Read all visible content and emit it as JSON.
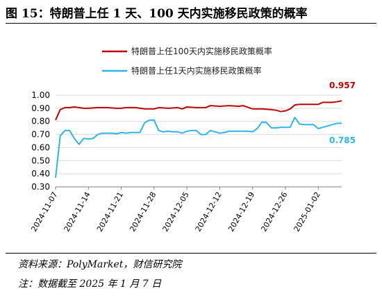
{
  "figure_title": "图 15：特朗普上任 1 天、100 天内实施移民政策的概率",
  "source_text": "资料来源：PolyMarket，财信研究院",
  "note_text": "注：数据截至 2025 年 1 月 7 日",
  "colors": {
    "series_100d": "#C00000",
    "series_1d": "#2EB5E8",
    "grid": "#d9d9d9",
    "axis": "#7f7f7f"
  },
  "chart_data": {
    "type": "line",
    "title": "",
    "xlabel": "",
    "ylabel": "",
    "ylim": [
      0.3,
      1.0
    ],
    "yticks": [
      "1.00",
      "0.90",
      "0.80",
      "0.70",
      "0.60",
      "0.50",
      "0.40",
      "0.30"
    ],
    "xlim": [
      "2024-11-07",
      "2025-01-07"
    ],
    "xticks": [
      "2024-11-07",
      "2024-11-14",
      "2024-11-21",
      "2024-11-28",
      "2024-12-05",
      "2024-12-12",
      "2024-12-19",
      "2024-12-26",
      "2025-01-02"
    ],
    "grid": "horizontal",
    "legend_position": "top",
    "series": [
      {
        "name": "特朗普上任100天内实施移民政策概率",
        "color": "#C00000",
        "end_label": "0.957",
        "points": [
          [
            "2024-11-07",
            0.81
          ],
          [
            "2024-11-08",
            0.89
          ],
          [
            "2024-11-09",
            0.905
          ],
          [
            "2024-11-10",
            0.905
          ],
          [
            "2024-11-11",
            0.91
          ],
          [
            "2024-11-12",
            0.905
          ],
          [
            "2024-11-13",
            0.9
          ],
          [
            "2024-11-14",
            0.9
          ],
          [
            "2024-11-16",
            0.905
          ],
          [
            "2024-11-18",
            0.905
          ],
          [
            "2024-11-20",
            0.9
          ],
          [
            "2024-11-21",
            0.9
          ],
          [
            "2024-11-22",
            0.905
          ],
          [
            "2024-11-24",
            0.905
          ],
          [
            "2024-11-26",
            0.895
          ],
          [
            "2024-11-28",
            0.895
          ],
          [
            "2024-11-29",
            0.905
          ],
          [
            "2024-12-01",
            0.9
          ],
          [
            "2024-12-03",
            0.905
          ],
          [
            "2024-12-04",
            0.895
          ],
          [
            "2024-12-05",
            0.91
          ],
          [
            "2024-12-07",
            0.905
          ],
          [
            "2024-12-09",
            0.905
          ],
          [
            "2024-12-10",
            0.92
          ],
          [
            "2024-12-12",
            0.915
          ],
          [
            "2024-12-14",
            0.92
          ],
          [
            "2024-12-16",
            0.915
          ],
          [
            "2024-12-17",
            0.92
          ],
          [
            "2024-12-19",
            0.895
          ],
          [
            "2024-12-21",
            0.895
          ],
          [
            "2024-12-23",
            0.89
          ],
          [
            "2024-12-24",
            0.885
          ],
          [
            "2024-12-25",
            0.875
          ],
          [
            "2024-12-26",
            0.88
          ],
          [
            "2024-12-27",
            0.895
          ],
          [
            "2024-12-28",
            0.925
          ],
          [
            "2024-12-29",
            0.93
          ],
          [
            "2024-12-31",
            0.93
          ],
          [
            "2025-01-02",
            0.93
          ],
          [
            "2025-01-03",
            0.945
          ],
          [
            "2025-01-05",
            0.945
          ],
          [
            "2025-01-06",
            0.95
          ],
          [
            "2025-01-07",
            0.957
          ]
        ]
      },
      {
        "name": "特朗普上任1天内实施移民政策概率",
        "color": "#2EB5E8",
        "end_label": "0.785",
        "points": [
          [
            "2024-11-07",
            0.37
          ],
          [
            "2024-11-08",
            0.69
          ],
          [
            "2024-11-09",
            0.73
          ],
          [
            "2024-11-10",
            0.73
          ],
          [
            "2024-11-11",
            0.67
          ],
          [
            "2024-11-12",
            0.625
          ],
          [
            "2024-11-13",
            0.67
          ],
          [
            "2024-11-14",
            0.665
          ],
          [
            "2024-11-15",
            0.67
          ],
          [
            "2024-11-16",
            0.7
          ],
          [
            "2024-11-17",
            0.71
          ],
          [
            "2024-11-18",
            0.71
          ],
          [
            "2024-11-19",
            0.71
          ],
          [
            "2024-11-20",
            0.705
          ],
          [
            "2024-11-21",
            0.715
          ],
          [
            "2024-11-22",
            0.71
          ],
          [
            "2024-11-23",
            0.715
          ],
          [
            "2024-11-24",
            0.715
          ],
          [
            "2024-11-25",
            0.715
          ],
          [
            "2024-11-26",
            0.79
          ],
          [
            "2024-11-27",
            0.81
          ],
          [
            "2024-11-28",
            0.81
          ],
          [
            "2024-11-29",
            0.73
          ],
          [
            "2024-11-30",
            0.72
          ],
          [
            "2024-12-01",
            0.725
          ],
          [
            "2024-12-02",
            0.72
          ],
          [
            "2024-12-03",
            0.72
          ],
          [
            "2024-12-04",
            0.71
          ],
          [
            "2024-12-05",
            0.725
          ],
          [
            "2024-12-06",
            0.73
          ],
          [
            "2024-12-07",
            0.73
          ],
          [
            "2024-12-08",
            0.7
          ],
          [
            "2024-12-09",
            0.7
          ],
          [
            "2024-12-10",
            0.73
          ],
          [
            "2024-12-11",
            0.72
          ],
          [
            "2024-12-12",
            0.71
          ],
          [
            "2024-12-13",
            0.715
          ],
          [
            "2024-12-14",
            0.725
          ],
          [
            "2024-12-15",
            0.725
          ],
          [
            "2024-12-16",
            0.725
          ],
          [
            "2024-12-17",
            0.725
          ],
          [
            "2024-12-18",
            0.725
          ],
          [
            "2024-12-19",
            0.72
          ],
          [
            "2024-12-20",
            0.745
          ],
          [
            "2024-12-21",
            0.795
          ],
          [
            "2024-12-22",
            0.79
          ],
          [
            "2024-12-23",
            0.75
          ],
          [
            "2024-12-24",
            0.75
          ],
          [
            "2024-12-25",
            0.755
          ],
          [
            "2024-12-26",
            0.755
          ],
          [
            "2024-12-27",
            0.755
          ],
          [
            "2024-12-28",
            0.83
          ],
          [
            "2024-12-29",
            0.78
          ],
          [
            "2024-12-30",
            0.775
          ],
          [
            "2024-12-31",
            0.775
          ],
          [
            "2025-01-01",
            0.775
          ],
          [
            "2025-01-02",
            0.745
          ],
          [
            "2025-01-03",
            0.755
          ],
          [
            "2025-01-04",
            0.765
          ],
          [
            "2025-01-05",
            0.775
          ],
          [
            "2025-01-06",
            0.785
          ],
          [
            "2025-01-07",
            0.785
          ]
        ]
      }
    ]
  }
}
